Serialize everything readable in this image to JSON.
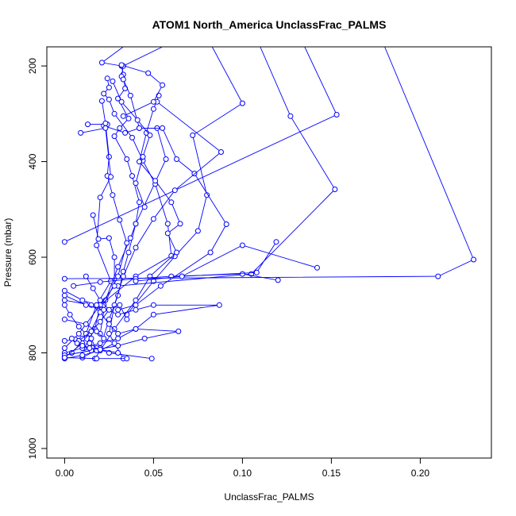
{
  "chart_data": {
    "type": "line",
    "title": "ATOM1 North_America UnclassFrac_PALMS",
    "xlabel": "UnclassFrac_PALMS",
    "ylabel": "Pressure (mbar)",
    "xlim": [
      -0.01,
      0.24
    ],
    "ylim": [
      1020,
      160
    ],
    "y_reversed": true,
    "x_ticks": [
      0.0,
      0.05,
      0.1,
      0.15,
      0.2
    ],
    "x_tick_labels": [
      "0.00",
      "0.05",
      "0.10",
      "0.15",
      "0.20"
    ],
    "y_ticks": [
      200,
      400,
      600,
      800,
      1000
    ],
    "y_tick_labels": [
      "200",
      "400",
      "600",
      "800",
      "1000"
    ],
    "grid": false,
    "series_color": "#0000ff",
    "segments": [
      [
        [
          0.033,
          160
        ],
        [
          0.021,
          193
        ],
        [
          0.032,
          200
        ],
        [
          0.033,
          218
        ],
        [
          0.034,
          247
        ],
        [
          0.03,
          268
        ],
        [
          0.036,
          310
        ],
        [
          0.031,
          330
        ],
        [
          0.028,
          347
        ],
        [
          0.035,
          395
        ],
        [
          0.038,
          430
        ],
        [
          0.042,
          485
        ],
        [
          0.04,
          530
        ],
        [
          0.036,
          590
        ],
        [
          0.033,
          630
        ],
        [
          0.03,
          680
        ],
        [
          0.025,
          730
        ],
        [
          0.02,
          790
        ],
        [
          0.01,
          810
        ]
      ],
      [
        [
          0.055,
          160
        ],
        [
          0.033,
          200
        ],
        [
          0.032,
          222
        ],
        [
          0.033,
          228
        ],
        [
          0.037,
          262
        ],
        [
          0.042,
          330
        ],
        [
          0.052,
          330
        ],
        [
          0.057,
          395
        ],
        [
          0.04,
          530
        ],
        [
          0.037,
          560
        ],
        [
          0.03,
          620
        ],
        [
          0.023,
          690
        ],
        [
          0.02,
          760
        ]
      ],
      [
        [
          0.083,
          160
        ],
        [
          0.1,
          278
        ],
        [
          0.072,
          345
        ],
        [
          0.08,
          470
        ],
        [
          0.075,
          545
        ],
        [
          0.062,
          598
        ],
        [
          0.05,
          650
        ],
        [
          0.035,
          720
        ]
      ],
      [
        [
          0.11,
          160
        ],
        [
          0.127,
          305
        ],
        [
          0.152,
          458
        ],
        [
          0.105,
          635
        ],
        [
          0.03,
          660
        ]
      ],
      [
        [
          0.135,
          160
        ],
        [
          0.153,
          302
        ],
        [
          0.0,
          568
        ]
      ],
      [
        [
          0.18,
          160
        ],
        [
          0.23,
          605
        ],
        [
          0.21,
          640
        ],
        [
          0.0,
          645
        ]
      ],
      [
        [
          0.013,
          322
        ],
        [
          0.024,
          322
        ],
        [
          0.022,
          325
        ],
        [
          0.034,
          340
        ],
        [
          0.042,
          330
        ],
        [
          0.055,
          330
        ],
        [
          0.063,
          395
        ],
        [
          0.073,
          425
        ],
        [
          0.091,
          531
        ],
        [
          0.082,
          590
        ],
        [
          0.054,
          660
        ],
        [
          0.04,
          700
        ],
        [
          0.03,
          710
        ]
      ],
      [
        [
          0.024,
          226
        ],
        [
          0.025,
          245
        ],
        [
          0.022,
          258
        ],
        [
          0.025,
          270
        ],
        [
          0.028,
          300
        ],
        [
          0.038,
          350
        ],
        [
          0.044,
          398
        ],
        [
          0.051,
          447
        ],
        [
          0.058,
          530
        ],
        [
          0.06,
          597
        ],
        [
          0.04,
          640
        ],
        [
          0.02,
          700
        ],
        [
          0.008,
          760
        ],
        [
          0.0,
          790
        ]
      ],
      [
        [
          0.021,
          273
        ],
        [
          0.023,
          320
        ],
        [
          0.025,
          390
        ],
        [
          0.024,
          430
        ],
        [
          0.027,
          470
        ],
        [
          0.031,
          522
        ],
        [
          0.035,
          570
        ],
        [
          0.03,
          640
        ],
        [
          0.022,
          700
        ],
        [
          0.014,
          760
        ],
        [
          0.004,
          800
        ]
      ],
      [
        [
          0.009,
          340
        ],
        [
          0.023,
          330
        ],
        [
          0.026,
          432
        ],
        [
          0.02,
          475
        ],
        [
          0.018,
          575
        ],
        [
          0.026,
          650
        ],
        [
          0.018,
          700
        ],
        [
          0.01,
          780
        ],
        [
          0.0,
          810
        ]
      ],
      [
        [
          0.016,
          512
        ],
        [
          0.019,
          562
        ],
        [
          0.025,
          560
        ],
        [
          0.028,
          600
        ],
        [
          0.028,
          660
        ],
        [
          0.02,
          700
        ],
        [
          0.017,
          750
        ],
        [
          0.011,
          790
        ]
      ],
      [
        [
          0.053,
          262
        ],
        [
          0.05,
          290
        ],
        [
          0.046,
          340
        ],
        [
          0.042,
          400
        ],
        [
          0.051,
          440
        ],
        [
          0.06,
          485
        ],
        [
          0.065,
          530
        ],
        [
          0.058,
          550
        ],
        [
          0.063,
          590
        ],
        [
          0.048,
          640
        ],
        [
          0.04,
          690
        ],
        [
          0.028,
          750
        ],
        [
          0.017,
          812
        ]
      ],
      [
        [
          0.052,
          275
        ],
        [
          0.088,
          380
        ],
        [
          0.062,
          460
        ],
        [
          0.05,
          520
        ],
        [
          0.04,
          580
        ],
        [
          0.033,
          640
        ],
        [
          0.028,
          700
        ],
        [
          0.025,
          760
        ],
        [
          0.033,
          812
        ]
      ],
      [
        [
          0.0,
          670
        ],
        [
          0.01,
          690
        ],
        [
          0.018,
          700
        ],
        [
          0.03,
          720
        ],
        [
          0.04,
          710
        ],
        [
          0.05,
          700
        ],
        [
          0.087,
          700
        ],
        [
          0.05,
          720
        ],
        [
          0.04,
          750
        ],
        [
          0.03,
          770
        ],
        [
          0.02,
          780
        ],
        [
          0.01,
          790
        ],
        [
          0.0,
          800
        ]
      ],
      [
        [
          0.0,
          690
        ],
        [
          0.015,
          700
        ],
        [
          0.02,
          715
        ],
        [
          0.025,
          740
        ],
        [
          0.03,
          760
        ],
        [
          0.04,
          750
        ],
        [
          0.064,
          755
        ],
        [
          0.045,
          770
        ],
        [
          0.03,
          785
        ],
        [
          0.015,
          795
        ],
        [
          0.0,
          805
        ]
      ],
      [
        [
          0.0,
          730
        ],
        [
          0.012,
          740
        ],
        [
          0.018,
          755
        ],
        [
          0.022,
          770
        ],
        [
          0.028,
          780
        ],
        [
          0.02,
          795
        ],
        [
          0.01,
          805
        ],
        [
          0.0,
          812
        ]
      ],
      [
        [
          0.0,
          775
        ],
        [
          0.006,
          772
        ],
        [
          0.01,
          770
        ],
        [
          0.014,
          780
        ],
        [
          0.018,
          790
        ],
        [
          0.025,
          800
        ],
        [
          0.049,
          812
        ]
      ],
      [
        [
          0.0,
          810
        ],
        [
          0.018,
          812
        ],
        [
          0.035,
          812
        ]
      ],
      [
        [
          0.0,
          680
        ],
        [
          0.012,
          700
        ],
        [
          0.022,
          710
        ],
        [
          0.031,
          700
        ],
        [
          0.035,
          730
        ]
      ],
      [
        [
          0.0,
          700
        ],
        [
          0.003,
          720
        ],
        [
          0.008,
          745
        ],
        [
          0.012,
          760
        ],
        [
          0.015,
          770
        ],
        [
          0.018,
          795
        ]
      ],
      [
        [
          0.012,
          640
        ],
        [
          0.016,
          665
        ],
        [
          0.02,
          690
        ],
        [
          0.025,
          710
        ],
        [
          0.02,
          735
        ],
        [
          0.015,
          755
        ],
        [
          0.008,
          775
        ]
      ],
      [
        [
          0.004,
          770
        ],
        [
          0.007,
          780
        ],
        [
          0.01,
          785
        ],
        [
          0.014,
          790
        ],
        [
          0.02,
          793
        ],
        [
          0.03,
          800
        ]
      ],
      [
        [
          0.12,
          648
        ],
        [
          0.1,
          635
        ],
        [
          0.06,
          640
        ],
        [
          0.04,
          645
        ],
        [
          0.02,
          652
        ],
        [
          0.005,
          660
        ]
      ],
      [
        [
          0.142,
          622
        ],
        [
          0.1,
          575
        ],
        [
          0.066,
          640
        ],
        [
          0.04,
          650
        ]
      ],
      [
        [
          0.119,
          568
        ],
        [
          0.108,
          632
        ],
        [
          0.066,
          640
        ]
      ],
      [
        [
          0.032,
          198
        ],
        [
          0.047,
          215
        ],
        [
          0.055,
          240
        ],
        [
          0.05,
          275
        ],
        [
          0.033,
          305
        ]
      ],
      [
        [
          0.027,
          232
        ],
        [
          0.032,
          275
        ],
        [
          0.041,
          313
        ],
        [
          0.048,
          345
        ],
        [
          0.044,
          390
        ],
        [
          0.04,
          445
        ],
        [
          0.045,
          495
        ]
      ]
    ]
  }
}
